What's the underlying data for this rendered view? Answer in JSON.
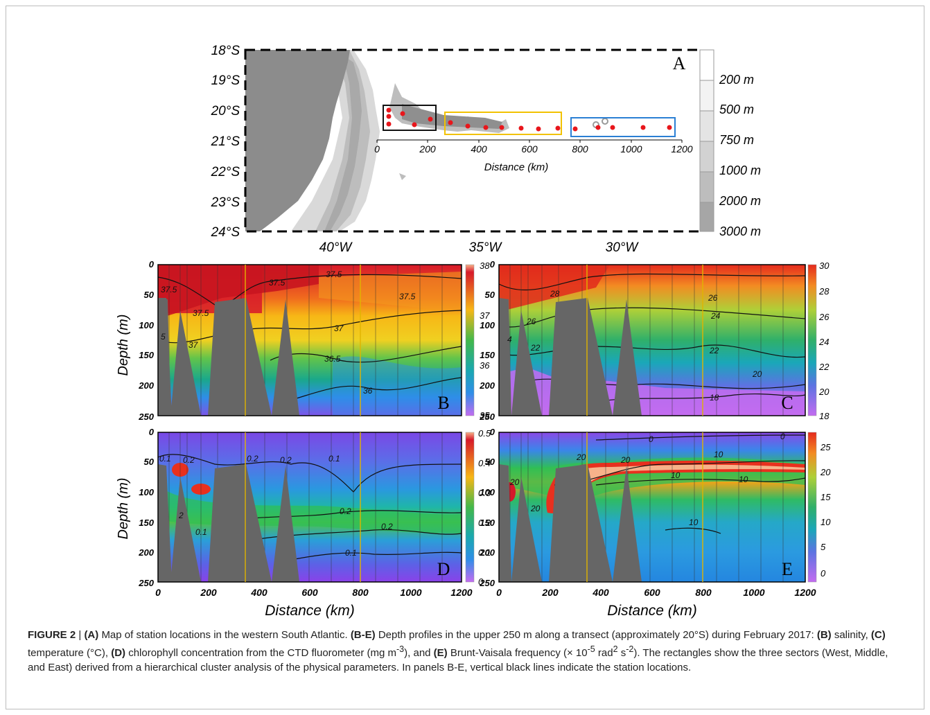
{
  "figure": {
    "map": {
      "panel_letter": "A",
      "lat_labels": [
        "18°S",
        "19°S",
        "20°S",
        "21°S",
        "22°S",
        "23°S",
        "24°S"
      ],
      "lon_labels": [
        "40°W",
        "35°W",
        "30°W"
      ],
      "distance_ticks": [
        "0",
        "200",
        "400",
        "600",
        "800",
        "1000",
        "1200"
      ],
      "distance_label": "Distance (km)",
      "depth_legend": [
        "200 m",
        "500 m",
        "750 m",
        "1000 m",
        "2000 m",
        "3000 m"
      ],
      "sector_colors": {
        "west": "#111111",
        "middle": "#f2c200",
        "east": "#2a7fd4"
      },
      "station_color": "#e8161b"
    },
    "sections": {
      "depth_label": "Depth (m)",
      "distance_label": "Distance (km)",
      "depth_ticks": [
        "0",
        "50",
        "100",
        "150",
        "200",
        "250"
      ],
      "distance_ticks": [
        "0",
        "200",
        "400",
        "600",
        "800",
        "1000",
        "1200"
      ],
      "panels": [
        {
          "letter": "B",
          "colorbar": [
            "38",
            "37",
            "36",
            "35"
          ],
          "contours": [
            "37.5",
            "37.5",
            "37.5",
            "37.5",
            "37.5",
            "37",
            "37",
            "36.5",
            "36",
            "5"
          ]
        },
        {
          "letter": "C",
          "colorbar": [
            "30",
            "28",
            "26",
            "24",
            "22",
            "20",
            "18"
          ],
          "contours": [
            "28",
            "26",
            "26",
            "24",
            "22",
            "22",
            "20",
            "18",
            "4"
          ]
        },
        {
          "letter": "D",
          "colorbar": [
            "0.5",
            "0.4",
            "0.3",
            "0.2",
            "0.1",
            "0"
          ],
          "contours": [
            "0.1",
            "0.2",
            "0.2",
            "0.2",
            "0.1",
            "0.2",
            "0.2",
            "0.1",
            "0.1",
            "2"
          ]
        },
        {
          "letter": "E",
          "colorbar": [
            "25",
            "20",
            "15",
            "10",
            "5",
            "0"
          ],
          "contours": [
            "0",
            "0",
            "20",
            "20",
            "20",
            "20",
            "10",
            "10",
            "10",
            "10"
          ]
        }
      ]
    },
    "caption": {
      "label": "FIGURE 2",
      "sep": "|",
      "a_tag": "(A)",
      "a_text": "Map of station locations in the western South Atlantic.",
      "be_tag": "(B-E)",
      "be_text": "Depth profiles in the upper 250 m along a transect (approximately 20°S) during February 2017:",
      "b_tag": "(B)",
      "b_text": "salinity,",
      "c_tag": "(C)",
      "c_text": "temperature (°C),",
      "d_tag": "(D)",
      "d_text": "chlorophyll concentration from the CTD fluorometer (mg m",
      "d_sup": "-3",
      "d_end": "), and",
      "e_tag": "(E)",
      "e_text": "Brunt-Vaisala frequency (× 10",
      "e_sup1": "-5",
      "e_mid": " rad",
      "e_sup2": "2",
      "e_mid2": " s",
      "e_sup3": "-2",
      "e_end": ").",
      "rest": "The rectangles show the three sectors (West, Middle, and East) derived from a hierarchical cluster analysis of the physical parameters. In panels B-E, vertical black lines indicate the station locations."
    }
  }
}
